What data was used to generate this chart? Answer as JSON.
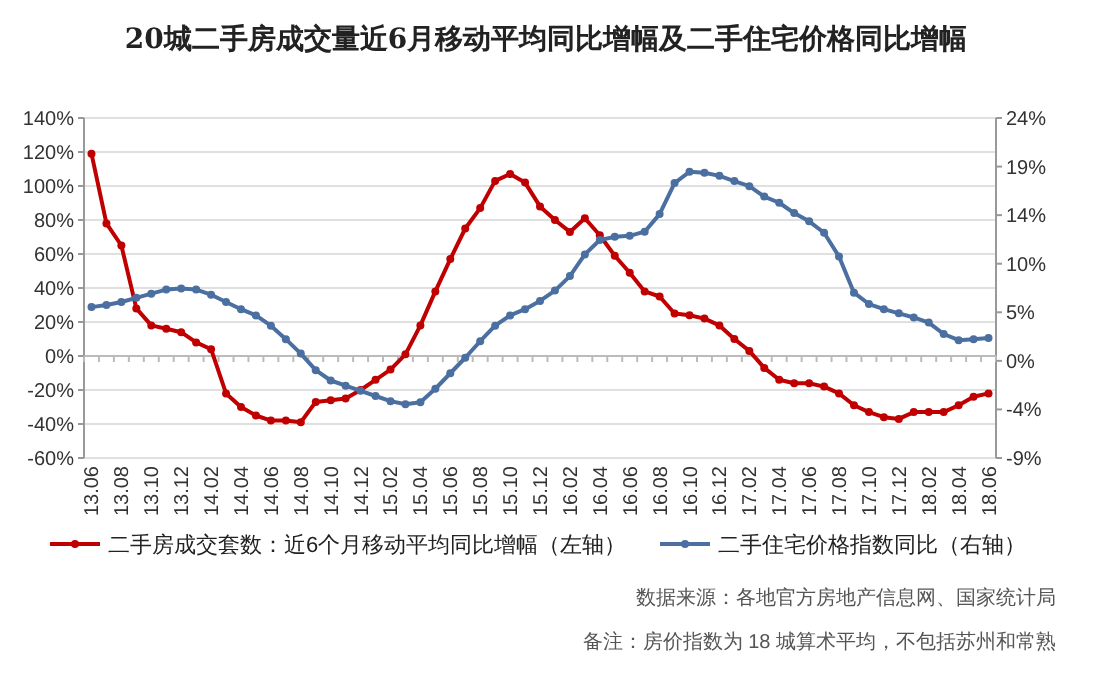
{
  "chart_data": {
    "type": "line",
    "title": "20城二手房成交量近6月移动平均同比增幅及二手住宅价格同比增幅",
    "categories": [
      "13.06",
      null,
      "13.08",
      null,
      "13.10",
      null,
      "13.12",
      null,
      "14.02",
      null,
      "14.04",
      null,
      "14.06",
      null,
      "14.08",
      null,
      "14.10",
      null,
      "14.12",
      null,
      "15.02",
      null,
      "15.04",
      null,
      "15.06",
      null,
      "15.08",
      null,
      "15.10",
      null,
      "15.12",
      null,
      "16.02",
      null,
      "16.04",
      null,
      "16.06",
      null,
      "16.08",
      null,
      "16.10",
      null,
      "16.12",
      null,
      "17.02",
      null,
      "17.04",
      null,
      "17.06",
      null,
      "17.08",
      null,
      "17.10",
      null,
      "17.12",
      null,
      "18.02",
      null,
      "18.04",
      null,
      "18.06"
    ],
    "series": [
      {
        "name": "二手房成交套数：近6个月移动平均同比增幅（左轴）",
        "color": "#c00000",
        "values": [
          119,
          78,
          65,
          28,
          18,
          16,
          14,
          8,
          4,
          -22,
          -30,
          -35,
          -38,
          -38,
          -39,
          -27,
          -26,
          -25,
          -20,
          -14,
          -8,
          1,
          18,
          38,
          57,
          75,
          87,
          103,
          107,
          102,
          88,
          80,
          73,
          81,
          71,
          59,
          49,
          38,
          35,
          25,
          24,
          22,
          18,
          10,
          3,
          -7,
          -14,
          -16,
          -16,
          -18,
          -22,
          -29,
          -33,
          -36,
          -37,
          -33,
          -33,
          -33,
          -29,
          -24,
          -22
        ]
      },
      {
        "name": "二手住宅价格指数同比（右轴）",
        "color": "#4a6fa0",
        "axis": "y2",
        "values": [
          5.5,
          5.7,
          6.0,
          6.4,
          6.8,
          7.2,
          7.3,
          7.2,
          6.7,
          6.0,
          5.3,
          4.7,
          3.7,
          2.4,
          1.0,
          -0.6,
          -1.6,
          -2.1,
          -2.6,
          -3.1,
          -3.6,
          -3.9,
          -3.7,
          -2.4,
          -0.9,
          0.6,
          2.2,
          3.7,
          4.7,
          5.3,
          6.1,
          7.1,
          8.5,
          10.6,
          12.0,
          12.3,
          12.4,
          12.8,
          14.5,
          17.5,
          18.6,
          18.5,
          18.2,
          17.7,
          17.2,
          16.2,
          15.6,
          14.6,
          13.8,
          12.7,
          10.4,
          6.9,
          5.8,
          5.3,
          4.9,
          4.5,
          4.0,
          2.9,
          2.3,
          2.4,
          2.5
        ]
      }
    ],
    "ylim": [
      -60,
      140
    ],
    "yticks": [
      {
        "value": -60,
        "label": "-60%"
      },
      {
        "value": -40,
        "label": "-40%"
      },
      {
        "value": -20,
        "label": "-20%"
      },
      {
        "value": 0,
        "label": "0%"
      },
      {
        "value": 20,
        "label": "20%"
      },
      {
        "value": 40,
        "label": "40%"
      },
      {
        "value": 60,
        "label": "60%"
      },
      {
        "value": 80,
        "label": "80%"
      },
      {
        "value": 100,
        "label": "100%"
      },
      {
        "value": 120,
        "label": "120%"
      },
      {
        "value": 140,
        "label": "140%"
      }
    ],
    "y2lim": [
      -9.1,
      23.8
    ],
    "y2ticks": [
      {
        "value": -9.1,
        "label": "-9%"
      },
      {
        "value": -4.4,
        "label": "-4%"
      },
      {
        "value": 0.3,
        "label": "0%"
      },
      {
        "value": 5.0,
        "label": "5%"
      },
      {
        "value": 9.7,
        "label": "10%"
      },
      {
        "value": 14.4,
        "label": "14%"
      },
      {
        "value": 19.1,
        "label": "19%"
      },
      {
        "value": 23.8,
        "label": "24%"
      }
    ],
    "grid": "y",
    "legend": "bottom",
    "marker": "circle",
    "line_style": "solid",
    "annotations": [
      "数据来源：各地官方房地产信息网、国家统计局",
      "备注：房价指数为 18 城算术平均，不包括苏州和常熟"
    ]
  }
}
